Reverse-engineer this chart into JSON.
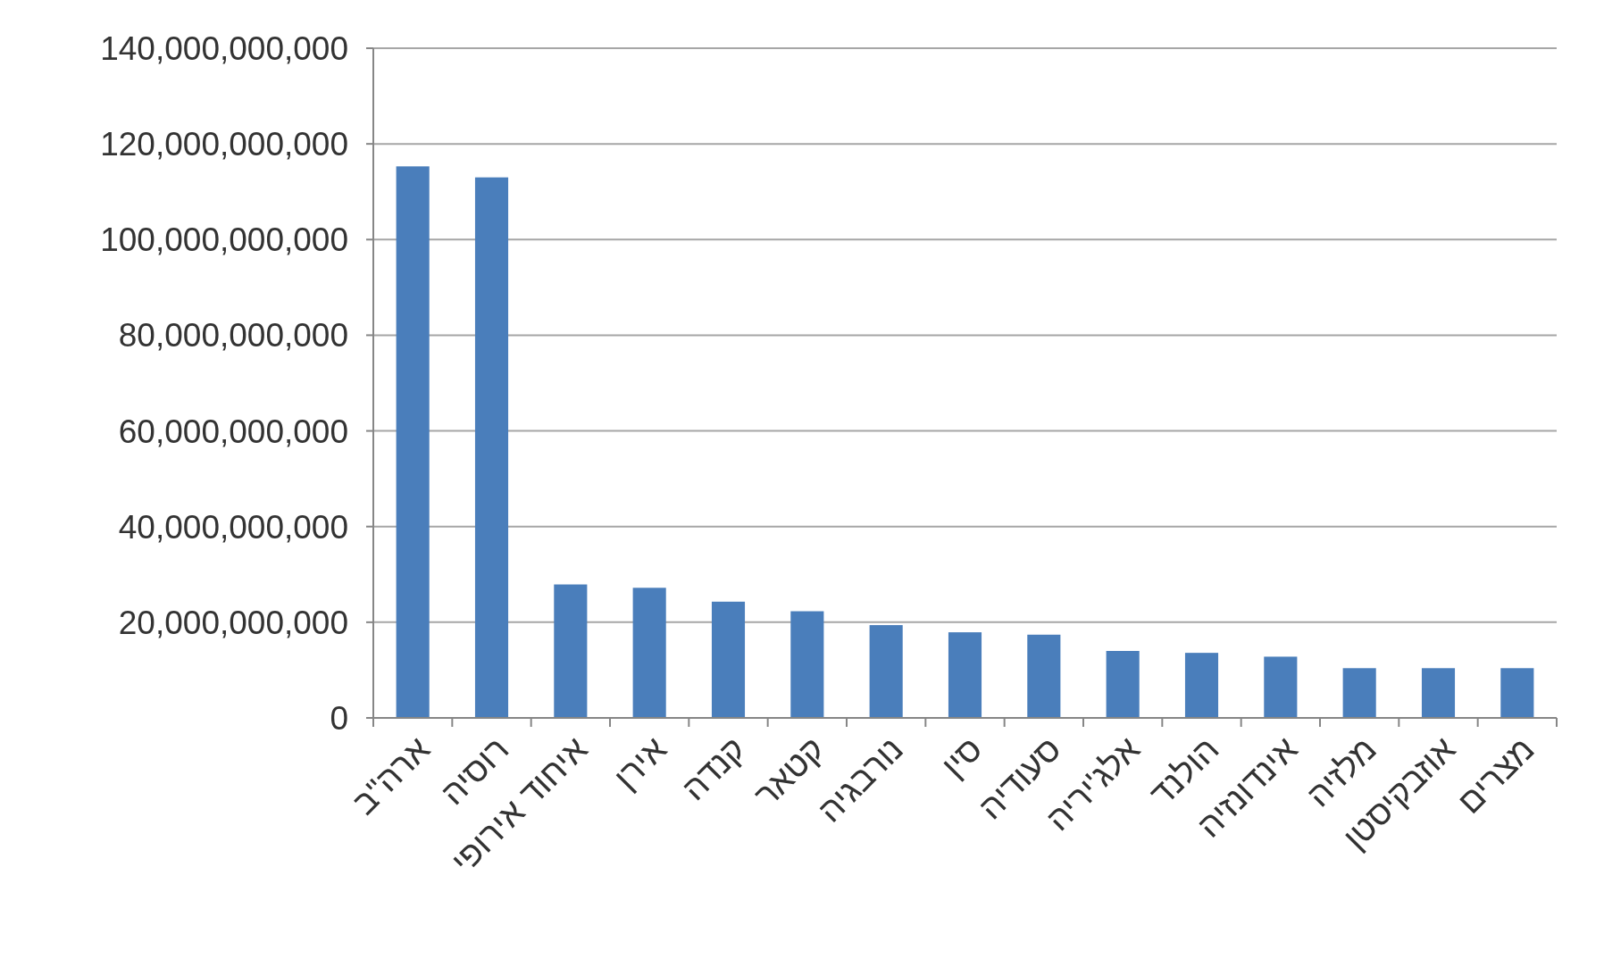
{
  "chart_data": {
    "type": "bar",
    "categories": [
      "ארה\"ב",
      "רוסיה",
      "איחוד אירופי",
      "אירן",
      "קנדה",
      "קטאר",
      "נורבגיה",
      "סין",
      "סעודיה",
      "אלג'יריה",
      "הולנד",
      "אינדונזיה",
      "מלזיה",
      "אוזבקיסטן",
      "מצרים"
    ],
    "values": [
      115300000000,
      113000000000,
      27900000000,
      27200000000,
      24300000000,
      22300000000,
      19400000000,
      17900000000,
      17400000000,
      14000000000,
      13600000000,
      12800000000,
      10400000000,
      10400000000,
      10400000000
    ],
    "color": "#4a7ebb",
    "ylim": [
      0,
      140000000000
    ],
    "yticks": [
      {
        "value": 0,
        "label": "0"
      },
      {
        "value": 20000000000,
        "label": "20,000,000,000"
      },
      {
        "value": 40000000000,
        "label": "40,000,000,000"
      },
      {
        "value": 60000000000,
        "label": "60,000,000,000"
      },
      {
        "value": 80000000000,
        "label": "80,000,000,000"
      },
      {
        "value": 100000000000,
        "label": "100,000,000,000"
      },
      {
        "value": 120000000000,
        "label": "120,000,000,000"
      },
      {
        "value": 140000000000,
        "label": "140,000,000,000"
      }
    ],
    "grid": "y"
  }
}
